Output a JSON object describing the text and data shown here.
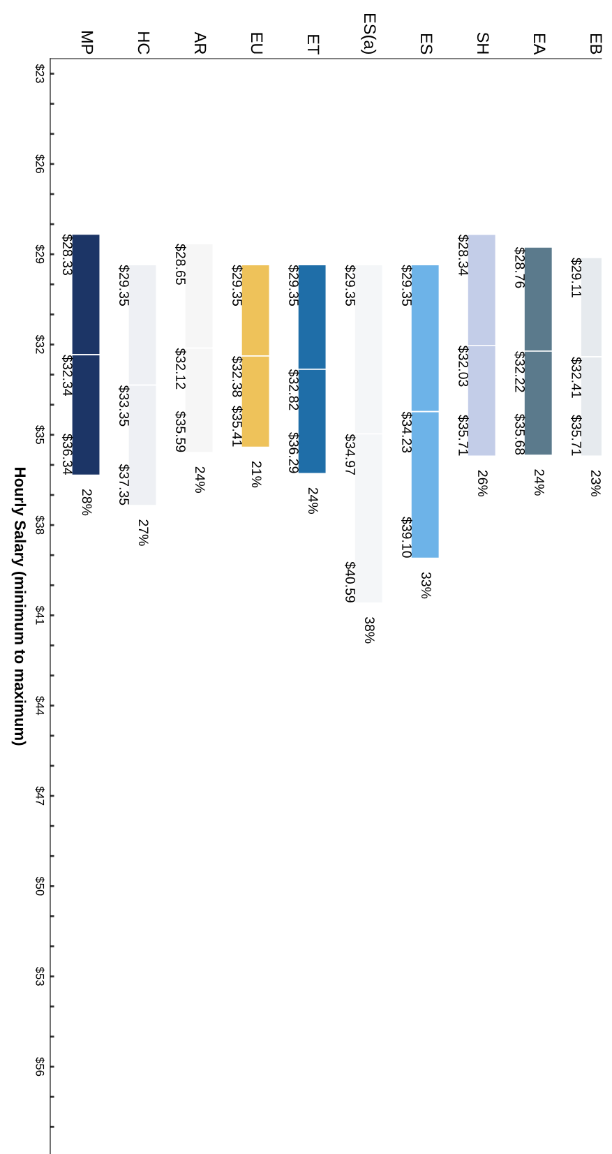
{
  "chart_data": {
    "type": "bar",
    "ylabel": "Hourly Salary (minimum to maximum)",
    "categories": [
      "MP",
      "HC",
      "AR",
      "EU",
      "ET",
      "ES(a)",
      "ES",
      "SH",
      "EA",
      "EB"
    ],
    "series": [
      {
        "colors": [
          "#1c3566",
          "#eef0f4",
          "#f6f6f6",
          "#eec25a",
          "#1f6ea8",
          "#f4f6f8",
          "#6db3e8",
          "#c3cde8",
          "#5b7a8c",
          "#e6eaee"
        ],
        "base": [
          28.33,
          29.35,
          28.65,
          29.35,
          29.35,
          29.35,
          29.35,
          28.34,
          28.76,
          29.11
        ],
        "values": [
          4.01,
          4.0,
          3.47,
          3.03,
          3.47,
          5.62,
          4.88,
          3.69,
          3.46,
          3.3
        ]
      },
      {
        "colors": [
          "#1c3566",
          "#eef0f4",
          "#f6f6f6",
          "#eec25a",
          "#1f6ea8",
          "#f4f6f8",
          "#6db3e8",
          "#c3cde8",
          "#5b7a8c",
          "#e6eaee"
        ],
        "base": [
          32.34,
          33.35,
          32.12,
          32.38,
          32.82,
          34.97,
          34.23,
          32.03,
          32.22,
          32.41
        ],
        "values": [
          4.0,
          4.0,
          3.47,
          3.03,
          3.47,
          5.62,
          4.87,
          3.68,
          3.46,
          3.3
        ]
      }
    ],
    "ylim": [
      58.9,
      22.5
    ],
    "yticks": [
      {
        "value": 23,
        "label": "$23"
      },
      {
        "value": 24,
        "label": null
      },
      {
        "value": 25,
        "label": null
      },
      {
        "value": 26,
        "label": "$26"
      },
      {
        "value": 27,
        "label": null
      },
      {
        "value": 28,
        "label": null
      },
      {
        "value": 29,
        "label": "$29"
      },
      {
        "value": 30,
        "label": null
      },
      {
        "value": 31,
        "label": null
      },
      {
        "value": 32,
        "label": "$32"
      },
      {
        "value": 33,
        "label": null
      },
      {
        "value": 34,
        "label": null
      },
      {
        "value": 35,
        "label": "$35"
      },
      {
        "value": 36,
        "label": null
      },
      {
        "value": 37,
        "label": null
      },
      {
        "value": 38,
        "label": "$38"
      },
      {
        "value": 39,
        "label": null
      },
      {
        "value": 40,
        "label": null
      },
      {
        "value": 41,
        "label": "$41"
      },
      {
        "value": 42,
        "label": null
      },
      {
        "value": 43,
        "label": null
      },
      {
        "value": 44,
        "label": "$44"
      },
      {
        "value": 45,
        "label": null
      },
      {
        "value": 46,
        "label": null
      },
      {
        "value": 47,
        "label": "$47"
      },
      {
        "value": 48,
        "label": null
      },
      {
        "value": 49,
        "label": null
      },
      {
        "value": 50,
        "label": "$50"
      },
      {
        "value": 51,
        "label": null
      },
      {
        "value": 52,
        "label": null
      },
      {
        "value": 53,
        "label": "$53"
      },
      {
        "value": 54,
        "label": null
      },
      {
        "value": 55,
        "label": null
      },
      {
        "value": 56,
        "label": "$56"
      },
      {
        "value": 57,
        "label": null
      },
      {
        "value": 58,
        "label": null
      }
    ],
    "grid": false,
    "annotations": [
      {
        "text": "$28.33",
        "x": "MP",
        "y": 28.33
      },
      {
        "text": "$32.34",
        "x": "MP",
        "y": 32.34
      },
      {
        "text": "$36.34",
        "x": "MP",
        "y": 36.34
      },
      {
        "text": "28%",
        "x": "MP",
        "y": 36.34
      },
      {
        "text": "$29.35",
        "x": "HC",
        "y": 29.35
      },
      {
        "text": "$33.35",
        "x": "HC",
        "y": 33.35
      },
      {
        "text": "$37.35",
        "x": "HC",
        "y": 37.35
      },
      {
        "text": "27%",
        "x": "HC",
        "y": 37.35
      },
      {
        "text": "$28.65",
        "x": "AR",
        "y": 28.65
      },
      {
        "text": "$32.12",
        "x": "AR",
        "y": 32.12
      },
      {
        "text": "$35.59",
        "x": "AR",
        "y": 35.59
      },
      {
        "text": "24%",
        "x": "AR",
        "y": 35.59
      },
      {
        "text": "$29.35",
        "x": "EU",
        "y": 29.35
      },
      {
        "text": "$32.38",
        "x": "EU",
        "y": 32.38
      },
      {
        "text": "$35.41",
        "x": "EU",
        "y": 35.41
      },
      {
        "text": "21%",
        "x": "EU",
        "y": 35.41
      },
      {
        "text": "$29.35",
        "x": "ET",
        "y": 29.35
      },
      {
        "text": "$32.82",
        "x": "ET",
        "y": 32.82
      },
      {
        "text": "$36.29",
        "x": "ET",
        "y": 36.29
      },
      {
        "text": "24%",
        "x": "ET",
        "y": 36.29
      },
      {
        "text": "$29.35",
        "x": "ES(a)",
        "y": 29.35
      },
      {
        "text": "$34.97",
        "x": "ES(a)",
        "y": 34.97
      },
      {
        "text": "$40.59",
        "x": "ES(a)",
        "y": 40.59
      },
      {
        "text": "38%",
        "x": "ES(a)",
        "y": 40.59
      },
      {
        "text": "$29.35",
        "x": "ES",
        "y": 29.35
      },
      {
        "text": "$34.23",
        "x": "ES",
        "y": 34.23
      },
      {
        "text": "$39.10",
        "x": "ES",
        "y": 39.1
      },
      {
        "text": "33%",
        "x": "ES",
        "y": 39.1
      },
      {
        "text": "$28.34",
        "x": "SH",
        "y": 28.34
      },
      {
        "text": "$32.03",
        "x": "SH",
        "y": 32.03
      },
      {
        "text": "$35.71",
        "x": "SH",
        "y": 35.71
      },
      {
        "text": "26%",
        "x": "SH",
        "y": 35.71
      },
      {
        "text": "$28.76",
        "x": "EA",
        "y": 28.76
      },
      {
        "text": "$32.22",
        "x": "EA",
        "y": 32.22
      },
      {
        "text": "$35.68",
        "x": "EA",
        "y": 35.68
      },
      {
        "text": "24%",
        "x": "EA",
        "y": 35.68
      },
      {
        "text": "$29.11",
        "x": "EB",
        "y": 29.11
      },
      {
        "text": "$32.41",
        "x": "EB",
        "y": 32.41
      },
      {
        "text": "$35.71",
        "x": "EB",
        "y": 35.71
      },
      {
        "text": "23%",
        "x": "EB",
        "y": 35.71
      }
    ]
  }
}
